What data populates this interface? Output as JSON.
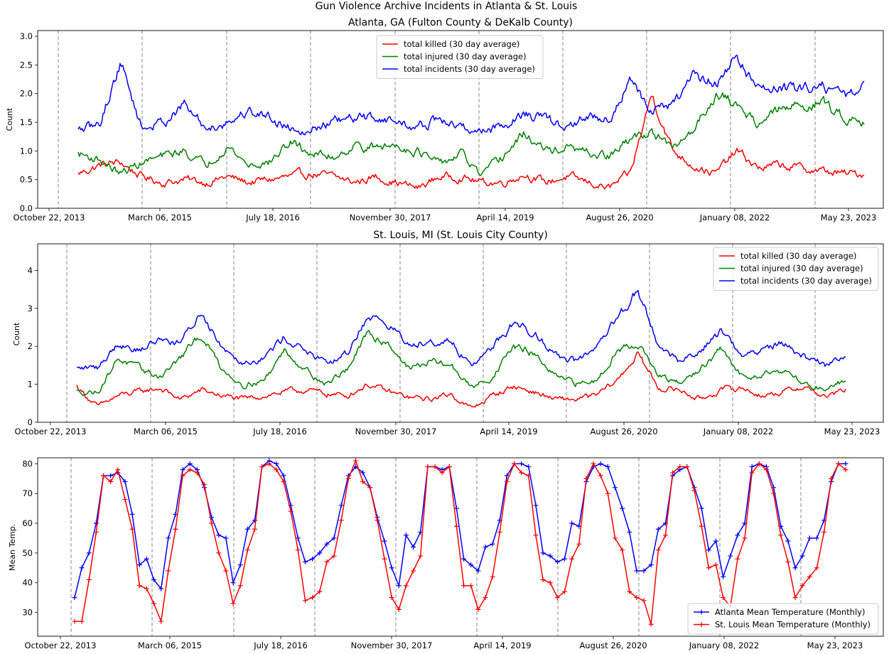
{
  "figure": {
    "title": "Gun Violence Archive Incidents in Atlanta & St. Louis"
  },
  "colors": {
    "killed": "#ff0000",
    "injured": "#008000",
    "incidents": "#0000ff",
    "atlanta_temp": "#0000ff",
    "stlouis_temp": "#ff0000",
    "vline": "#b0b0b0"
  },
  "chart_data": [
    {
      "type": "line",
      "title": "Atlanta, GA (Fulton County & DeKalb County)",
      "ylabel": "Count",
      "xlabel": "",
      "ylim": [
        0,
        3.1
      ],
      "yticks": [
        "0.0",
        "0.5",
        "1.0",
        "1.5",
        "2.0",
        "2.5",
        "3.0"
      ],
      "xticks": [
        "October 22, 2013",
        "March 06, 2015",
        "July 18, 2016",
        "November 30, 2017",
        "April 14, 2019",
        "August 26, 2020",
        "January 08, 2022",
        "May 23, 2023"
      ],
      "x_dates": [
        "2014-01",
        "2014-04",
        "2014-07",
        "2014-10",
        "2015-01",
        "2015-04",
        "2015-07",
        "2015-10",
        "2016-01",
        "2016-04",
        "2016-07",
        "2016-10",
        "2017-01",
        "2017-04",
        "2017-07",
        "2017-10",
        "2018-01",
        "2018-04",
        "2018-07",
        "2018-10",
        "2019-01",
        "2019-04",
        "2019-07",
        "2019-10",
        "2020-01",
        "2020-04",
        "2020-07",
        "2020-10",
        "2021-01",
        "2021-04",
        "2021-07",
        "2021-10",
        "2022-01",
        "2022-04",
        "2022-07",
        "2022-10",
        "2023-01",
        "2023-04"
      ],
      "legend": "upper center",
      "series": [
        {
          "name": "total killed (30 day average)",
          "color": "#ff0000",
          "values": [
            0.6,
            0.75,
            0.8,
            0.55,
            0.45,
            0.5,
            0.45,
            0.55,
            0.45,
            0.5,
            0.55,
            0.6,
            0.55,
            0.45,
            0.55,
            0.45,
            0.35,
            0.55,
            0.55,
            0.45,
            0.45,
            0.6,
            0.45,
            0.55,
            0.45,
            0.35,
            0.6,
            2.0,
            1.0,
            0.75,
            0.6,
            1.0,
            0.7,
            0.75,
            0.7,
            0.65,
            0.6,
            0.6
          ]
        },
        {
          "name": "total injured (30 day average)",
          "color": "#008000",
          "values": [
            0.95,
            0.85,
            0.6,
            0.8,
            0.9,
            1.0,
            0.75,
            1.1,
            0.75,
            0.8,
            1.15,
            0.95,
            0.9,
            1.1,
            1.05,
            1.1,
            1.0,
            0.75,
            0.95,
            0.55,
            0.9,
            1.3,
            1.0,
            1.05,
            0.95,
            0.9,
            1.2,
            1.35,
            1.0,
            1.4,
            2.0,
            1.8,
            1.5,
            1.7,
            1.8,
            1.85,
            1.6,
            1.55
          ]
        },
        {
          "name": "total incidents (30 day average)",
          "color": "#0000ff",
          "values": [
            1.35,
            1.45,
            2.55,
            1.4,
            1.5,
            1.8,
            1.4,
            1.5,
            1.7,
            1.6,
            1.4,
            1.4,
            1.5,
            1.55,
            1.6,
            1.5,
            1.4,
            1.55,
            1.4,
            1.35,
            1.45,
            1.65,
            1.55,
            1.4,
            1.6,
            1.55,
            2.2,
            1.7,
            1.8,
            2.3,
            2.2,
            2.6,
            2.1,
            2.1,
            2.05,
            2.2,
            1.95,
            2.1
          ]
        }
      ]
    },
    {
      "type": "line",
      "title": "St. Louis, MI (St. Louis City County)",
      "ylabel": "Count",
      "xlabel": "",
      "ylim": [
        0,
        4.7
      ],
      "yticks": [
        "0",
        "1",
        "2",
        "3",
        "4"
      ],
      "xticks": [
        "October 22, 2013",
        "March 06, 2015",
        "July 18, 2016",
        "November 30, 2017",
        "April 14, 2019",
        "August 26, 2020",
        "January 08, 2022",
        "May 23, 2023"
      ],
      "x_dates": [
        "2014-01",
        "2014-04",
        "2014-07",
        "2014-10",
        "2015-01",
        "2015-04",
        "2015-07",
        "2015-10",
        "2016-01",
        "2016-04",
        "2016-07",
        "2016-10",
        "2017-01",
        "2017-04",
        "2017-07",
        "2017-10",
        "2018-01",
        "2018-04",
        "2018-07",
        "2018-10",
        "2019-01",
        "2019-04",
        "2019-07",
        "2019-10",
        "2020-01",
        "2020-04",
        "2020-07",
        "2020-10",
        "2021-01",
        "2021-04",
        "2021-07",
        "2021-10",
        "2022-01",
        "2022-04",
        "2022-07",
        "2022-10",
        "2023-01",
        "2023-04"
      ],
      "legend": "upper right",
      "series": [
        {
          "name": "total killed (30 day average)",
          "color": "#ff0000",
          "values": [
            0.95,
            0.4,
            0.7,
            0.8,
            0.9,
            0.6,
            0.85,
            0.7,
            0.6,
            0.7,
            0.8,
            0.85,
            0.75,
            0.7,
            1.0,
            0.8,
            0.65,
            0.6,
            0.75,
            0.35,
            0.7,
            0.95,
            0.8,
            0.6,
            0.6,
            0.7,
            1.1,
            1.8,
            0.9,
            0.85,
            0.6,
            0.85,
            0.9,
            0.7,
            0.8,
            0.95,
            0.65,
            0.85
          ]
        },
        {
          "name": "total injured (30 day average)",
          "color": "#008000",
          "values": [
            0.8,
            0.8,
            1.7,
            1.4,
            1.2,
            1.7,
            2.3,
            1.4,
            1.0,
            1.1,
            1.9,
            1.4,
            1.0,
            1.4,
            2.3,
            2.1,
            1.4,
            1.6,
            1.5,
            0.9,
            1.2,
            2.0,
            1.8,
            1.2,
            1.0,
            1.1,
            1.9,
            2.1,
            1.2,
            1.0,
            1.4,
            1.9,
            1.2,
            1.3,
            1.4,
            1.0,
            0.9,
            1.1
          ]
        },
        {
          "name": "total incidents (30 day average)",
          "color": "#0000ff",
          "values": [
            1.4,
            1.45,
            2.1,
            1.9,
            2.2,
            2.1,
            2.9,
            2.0,
            1.6,
            1.7,
            2.25,
            1.9,
            1.5,
            1.8,
            2.8,
            2.6,
            2.0,
            2.2,
            2.1,
            1.5,
            2.0,
            2.6,
            2.4,
            1.8,
            1.6,
            1.9,
            2.7,
            3.5,
            2.0,
            1.6,
            1.9,
            2.4,
            1.8,
            1.9,
            2.1,
            1.7,
            1.5,
            1.8
          ]
        }
      ]
    },
    {
      "type": "line",
      "title": "",
      "ylabel": "Mean Temp.",
      "xlabel": "",
      "ylim": [
        22,
        82
      ],
      "yticks": [
        "30",
        "40",
        "50",
        "60",
        "70",
        "80"
      ],
      "xticks": [
        "October 22, 2013",
        "March 06, 2015",
        "July 18, 2016",
        "November 30, 2017",
        "April 14, 2019",
        "August 26, 2020",
        "January 08, 2022",
        "May 23, 2023"
      ],
      "legend": "lower right",
      "series": [
        {
          "name": "Atlanta Mean Temperature (Monthly)",
          "color": "#0000ff",
          "marker": "+",
          "values": [
            35,
            45,
            50,
            60,
            76,
            76,
            77,
            74,
            63,
            46,
            48,
            41,
            38,
            55,
            63,
            78,
            80,
            78,
            72,
            62,
            56,
            55,
            40,
            46,
            58,
            61,
            79,
            81,
            80,
            76,
            66,
            55,
            47,
            48,
            50,
            53,
            55,
            66,
            76,
            79,
            77,
            72,
            62,
            54,
            45,
            39,
            56,
            52,
            57,
            79,
            79,
            78,
            79,
            65,
            48,
            46,
            44,
            52,
            53,
            61,
            76,
            80,
            80,
            79,
            66,
            50,
            49,
            47,
            48,
            60,
            59,
            74,
            79,
            80,
            79,
            72,
            65,
            57,
            44,
            44,
            46,
            58,
            60,
            76,
            78,
            79,
            72,
            65,
            51,
            54,
            42,
            49,
            56,
            60,
            79,
            80,
            79,
            72,
            59,
            54,
            45,
            49,
            55,
            55,
            61,
            74,
            80,
            80
          ]
        },
        {
          "name": "St. Louis Mean Temperature (Monthly)",
          "color": "#ff0000",
          "marker": "+",
          "values": [
            27,
            27,
            41,
            57,
            76,
            74,
            78,
            68,
            58,
            39,
            38,
            33,
            27,
            44,
            58,
            76,
            78,
            77,
            73,
            60,
            50,
            44,
            33,
            39,
            51,
            58,
            79,
            80,
            78,
            74,
            64,
            51,
            34,
            35,
            37,
            47,
            49,
            61,
            75,
            81,
            74,
            72,
            61,
            48,
            35,
            31,
            39,
            44,
            49,
            79,
            79,
            77,
            79,
            59,
            39,
            39,
            31,
            35,
            42,
            57,
            74,
            80,
            77,
            76,
            56,
            41,
            40,
            35,
            37,
            48,
            53,
            75,
            80,
            76,
            70,
            55,
            51,
            37,
            35,
            34,
            26,
            51,
            56,
            77,
            79,
            79,
            71,
            59,
            45,
            46,
            35,
            32,
            48,
            55,
            77,
            80,
            78,
            70,
            56,
            47,
            35,
            39,
            42,
            45,
            57,
            75,
            80,
            78
          ]
        }
      ]
    }
  ]
}
